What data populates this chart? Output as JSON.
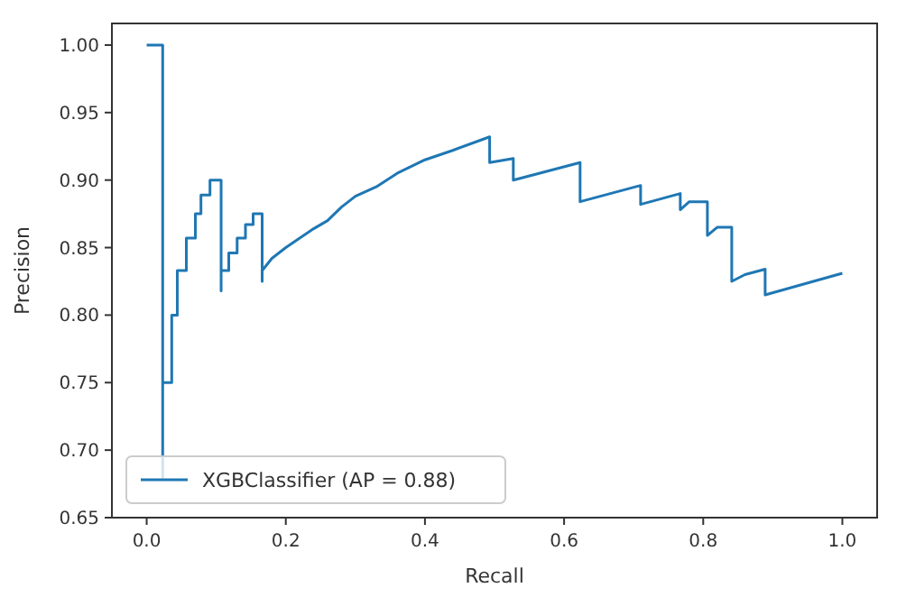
{
  "chart_data": {
    "type": "line",
    "xlabel": "Recall",
    "ylabel": "Precision",
    "xlim": [
      -0.05,
      1.05
    ],
    "ylim": [
      0.65,
      1.016
    ],
    "xticks": [
      {
        "value": 0,
        "label": "0.0"
      },
      {
        "value": 0.2,
        "label": "0.2"
      },
      {
        "value": 0.4,
        "label": "0.4"
      },
      {
        "value": 0.6,
        "label": "0.6"
      },
      {
        "value": 0.8,
        "label": "0.8"
      },
      {
        "value": 1,
        "label": "1.0"
      }
    ],
    "yticks": [
      {
        "value": 0.65,
        "label": "0.65"
      },
      {
        "value": 0.7,
        "label": "0.70"
      },
      {
        "value": 0.75,
        "label": "0.75"
      },
      {
        "value": 0.8,
        "label": "0.80"
      },
      {
        "value": 0.85,
        "label": "0.85"
      },
      {
        "value": 0.9,
        "label": "0.90"
      },
      {
        "value": 0.95,
        "label": "0.95"
      },
      {
        "value": 1,
        "label": "1.00"
      }
    ],
    "legend": "bottom left",
    "grid": false,
    "marker": "none",
    "line_style": "solid",
    "series": [
      {
        "name": "XGBClassifier (AP = 0.88)",
        "color": "#1f77b4",
        "x": [
          0,
          0.023,
          0.023,
          0.023,
          0.036,
          0.036,
          0.044,
          0.044,
          0.057,
          0.057,
          0.07,
          0.07,
          0.078,
          0.078,
          0.091,
          0.091,
          0.107,
          0.107,
          0.107,
          0.118,
          0.118,
          0.13,
          0.13,
          0.142,
          0.142,
          0.153,
          0.153,
          0.166,
          0.166,
          0.166,
          0.18,
          0.2,
          0.22,
          0.24,
          0.26,
          0.28,
          0.3,
          0.33,
          0.36,
          0.4,
          0.44,
          0.493,
          0.493,
          0.527,
          0.527,
          0.623,
          0.623,
          0.71,
          0.71,
          0.767,
          0.767,
          0.78,
          0.806,
          0.806,
          0.82,
          0.841,
          0.841,
          0.86,
          0.889,
          0.889,
          1.0
        ],
        "values": [
          1.0,
          1.0,
          0.68,
          0.75,
          0.75,
          0.8,
          0.8,
          0.833,
          0.833,
          0.857,
          0.857,
          0.875,
          0.875,
          0.889,
          0.889,
          0.9,
          0.9,
          0.818,
          0.833,
          0.833,
          0.846,
          0.846,
          0.857,
          0.857,
          0.867,
          0.867,
          0.875,
          0.875,
          0.825,
          0.833,
          0.842,
          0.85,
          0.857,
          0.864,
          0.87,
          0.88,
          0.888,
          0.895,
          0.905,
          0.915,
          0.922,
          0.932,
          0.913,
          0.916,
          0.9,
          0.913,
          0.884,
          0.896,
          0.882,
          0.89,
          0.878,
          0.884,
          0.884,
          0.859,
          0.865,
          0.865,
          0.825,
          0.83,
          0.834,
          0.815,
          0.831
        ]
      }
    ]
  }
}
